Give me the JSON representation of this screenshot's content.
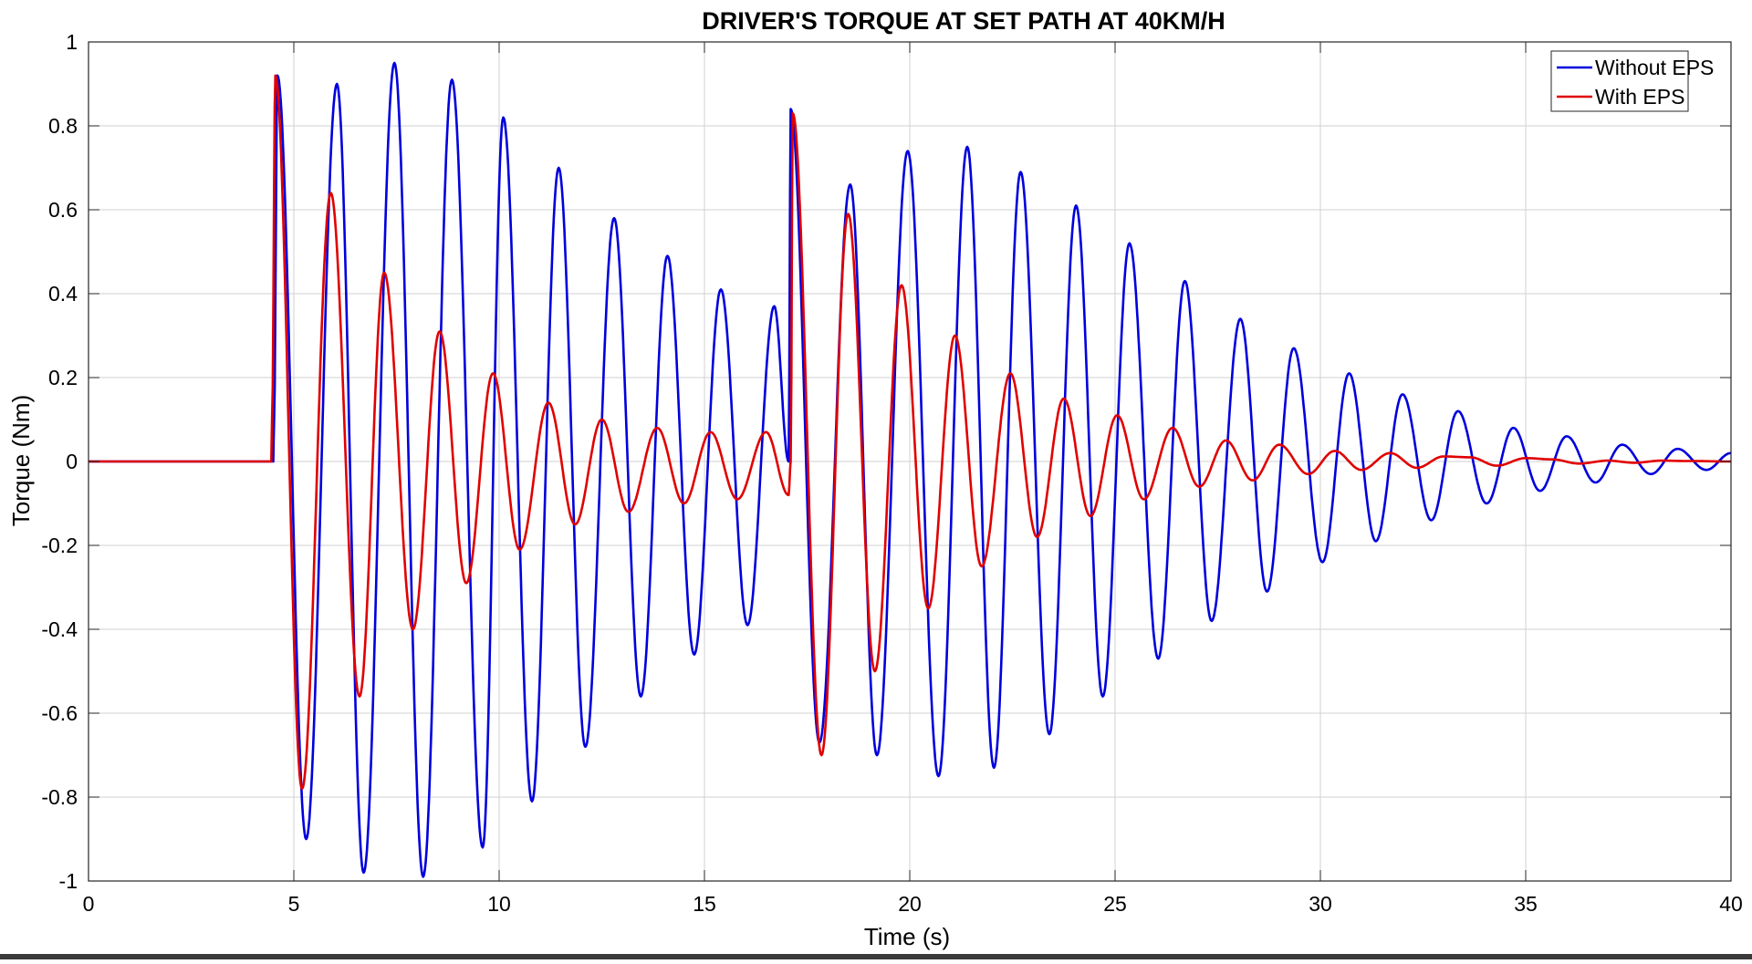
{
  "chart_data": {
    "type": "line",
    "title": "DRIVER'S TORQUE AT SET PATH AT 40KM/H",
    "xlabel": "Time (s)",
    "ylabel": "Torque (Nm)",
    "xlim": [
      0,
      40
    ],
    "ylim": [
      -1,
      1
    ],
    "xticks": [
      0,
      5,
      10,
      15,
      20,
      25,
      30,
      35,
      40
    ],
    "yticks": [
      -1,
      -0.8,
      -0.6,
      -0.4,
      -0.2,
      0,
      0.2,
      0.4,
      0.6,
      0.8,
      1
    ],
    "xtick_labels": [
      "0",
      "5",
      "10",
      "15",
      "20",
      "25",
      "30",
      "35",
      "40"
    ],
    "ytick_labels": [
      "-1",
      "-0.8",
      "-0.6",
      "-0.4",
      "-0.2",
      "0",
      "0.2",
      "0.4",
      "0.6",
      "0.8",
      "1"
    ],
    "grid": true,
    "legend_position": "top-right",
    "series": [
      {
        "name": "Without EPS",
        "color": "#0000dd",
        "points": [
          [
            0,
            0
          ],
          [
            4.5,
            0
          ],
          [
            4.52,
            0.1
          ],
          [
            4.6,
            0.92
          ],
          [
            5.3,
            -0.9
          ],
          [
            6.05,
            0.9
          ],
          [
            6.7,
            -0.98
          ],
          [
            7.45,
            0.95
          ],
          [
            8.15,
            -0.99
          ],
          [
            8.85,
            0.91
          ],
          [
            9.6,
            -0.92
          ],
          [
            10.1,
            0.82
          ],
          [
            10.8,
            -0.81
          ],
          [
            11.45,
            0.7
          ],
          [
            12.1,
            -0.68
          ],
          [
            12.8,
            0.58
          ],
          [
            13.45,
            -0.56
          ],
          [
            14.1,
            0.49
          ],
          [
            14.75,
            -0.46
          ],
          [
            15.4,
            0.41
          ],
          [
            16.05,
            -0.39
          ],
          [
            16.7,
            0.37
          ],
          [
            17.05,
            0.0
          ],
          [
            17.1,
            0.84
          ],
          [
            17.8,
            -0.67
          ],
          [
            18.55,
            0.66
          ],
          [
            19.2,
            -0.7
          ],
          [
            19.95,
            0.74
          ],
          [
            20.7,
            -0.75
          ],
          [
            21.4,
            0.75
          ],
          [
            22.05,
            -0.73
          ],
          [
            22.7,
            0.69
          ],
          [
            23.4,
            -0.65
          ],
          [
            24.05,
            0.61
          ],
          [
            24.7,
            -0.56
          ],
          [
            25.35,
            0.52
          ],
          [
            26.05,
            -0.47
          ],
          [
            26.7,
            0.43
          ],
          [
            27.35,
            -0.38
          ],
          [
            28.05,
            0.34
          ],
          [
            28.7,
            -0.31
          ],
          [
            29.35,
            0.27
          ],
          [
            30.05,
            -0.24
          ],
          [
            30.7,
            0.21
          ],
          [
            31.35,
            -0.19
          ],
          [
            32.0,
            0.16
          ],
          [
            32.7,
            -0.14
          ],
          [
            33.35,
            0.12
          ],
          [
            34.05,
            -0.1
          ],
          [
            34.7,
            0.08
          ],
          [
            35.35,
            -0.07
          ],
          [
            36.0,
            0.06
          ],
          [
            36.7,
            -0.05
          ],
          [
            37.35,
            0.04
          ],
          [
            38.05,
            -0.03
          ],
          [
            38.7,
            0.03
          ],
          [
            39.4,
            -0.02
          ],
          [
            40,
            0.02
          ]
        ]
      },
      {
        "name": "With EPS",
        "color": "#e00000",
        "points": [
          [
            0,
            0
          ],
          [
            4.45,
            0
          ],
          [
            4.47,
            0.1
          ],
          [
            4.55,
            0.92
          ],
          [
            5.2,
            -0.78
          ],
          [
            5.9,
            0.64
          ],
          [
            6.6,
            -0.56
          ],
          [
            7.2,
            0.45
          ],
          [
            7.9,
            -0.4
          ],
          [
            8.55,
            0.31
          ],
          [
            9.2,
            -0.29
          ],
          [
            9.85,
            0.21
          ],
          [
            10.5,
            -0.21
          ],
          [
            11.2,
            0.14
          ],
          [
            11.85,
            -0.15
          ],
          [
            12.5,
            0.1
          ],
          [
            13.15,
            -0.12
          ],
          [
            13.85,
            0.08
          ],
          [
            14.5,
            -0.1
          ],
          [
            15.15,
            0.07
          ],
          [
            15.8,
            -0.09
          ],
          [
            16.5,
            0.07
          ],
          [
            17.05,
            -0.08
          ],
          [
            17.1,
            0.0
          ],
          [
            17.15,
            0.83
          ],
          [
            17.85,
            -0.7
          ],
          [
            18.5,
            0.59
          ],
          [
            19.15,
            -0.5
          ],
          [
            19.8,
            0.42
          ],
          [
            20.45,
            -0.35
          ],
          [
            21.1,
            0.3
          ],
          [
            21.75,
            -0.25
          ],
          [
            22.45,
            0.21
          ],
          [
            23.1,
            -0.18
          ],
          [
            23.75,
            0.15
          ],
          [
            24.4,
            -0.13
          ],
          [
            25.05,
            0.11
          ],
          [
            25.7,
            -0.09
          ],
          [
            26.4,
            0.08
          ],
          [
            27.05,
            -0.06
          ],
          [
            27.7,
            0.05
          ],
          [
            28.35,
            -0.045
          ],
          [
            29.0,
            0.04
          ],
          [
            29.7,
            -0.03
          ],
          [
            30.35,
            0.025
          ],
          [
            31.0,
            -0.02
          ],
          [
            31.7,
            0.02
          ],
          [
            32.35,
            -0.015
          ],
          [
            33.0,
            0.012
          ],
          [
            33.65,
            0.01
          ],
          [
            34.3,
            -0.01
          ],
          [
            35.0,
            0.008
          ],
          [
            35.65,
            0.005
          ],
          [
            36.3,
            -0.005
          ],
          [
            37.0,
            0.002
          ],
          [
            37.65,
            -0.003
          ],
          [
            38.3,
            0.002
          ],
          [
            39.0,
            0.001
          ],
          [
            40,
            0.0
          ]
        ]
      }
    ]
  }
}
